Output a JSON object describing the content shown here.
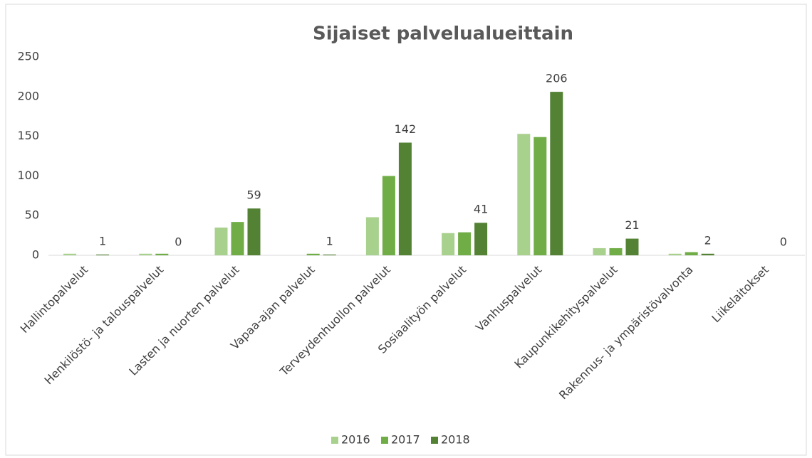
{
  "chart_data": {
    "type": "bar",
    "title": "Sijaiset palvelualueittain",
    "categories": [
      "Hallintopalvelut",
      "Henkilöstö- ja talouspalvelut",
      "Lasten ja nuorten palvelut",
      "Vapaa-ajan palvelut",
      "Terveydenhuollon palvelut",
      "Sosiaalityön palvelut",
      "Vanhuspalvelut",
      "Kaupunkikehityspalvelut",
      "Rakennus- ja ympäristövalvonta",
      "Liikelaitokset"
    ],
    "series": [
      {
        "name": "2016",
        "color": "#a9d18e",
        "values": [
          2,
          2,
          35,
          0,
          48,
          28,
          153,
          9,
          2,
          0
        ]
      },
      {
        "name": "2017",
        "color": "#70ad47",
        "values": [
          0,
          2,
          42,
          2,
          100,
          29,
          149,
          9,
          4,
          0
        ]
      },
      {
        "name": "2018",
        "color": "#548235",
        "values": [
          1,
          0,
          59,
          1,
          142,
          41,
          206,
          21,
          2,
          0
        ],
        "data_labels": true
      }
    ],
    "ylim": [
      0,
      250
    ],
    "yticks": [
      0,
      50,
      100,
      150,
      200,
      250
    ],
    "grid": false,
    "legend": "bottom"
  }
}
